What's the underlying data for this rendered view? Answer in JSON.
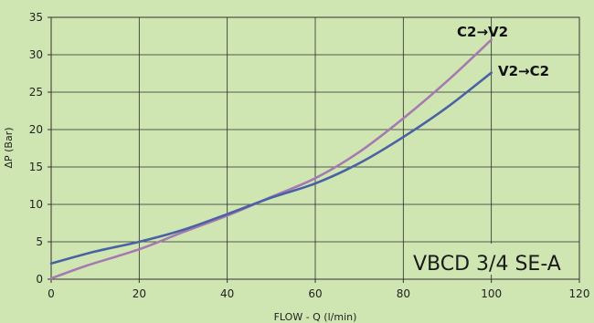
{
  "chart_data": {
    "type": "line",
    "xlabel": "FLOW - Q (l/min)",
    "ylabel": "ΔP (Bar)",
    "xlim": [
      0,
      120
    ],
    "ylim": [
      0,
      35
    ],
    "xticks": [
      "0",
      "20",
      "40",
      "60",
      "80",
      "100",
      "120"
    ],
    "yticks": [
      "0",
      "5",
      "10",
      "15",
      "20",
      "25",
      "30",
      "35"
    ],
    "grid": true,
    "background_color": "#cfe6b3",
    "series": [
      {
        "name": "C2→V2",
        "color": "#a57ab0",
        "x": [
          0,
          8,
          20,
          30,
          40,
          50,
          60,
          70,
          80,
          90,
          100
        ],
        "y": [
          0.1,
          1.8,
          4.0,
          6.3,
          8.5,
          11.0,
          13.5,
          17.0,
          21.5,
          26.5,
          32.0
        ]
      },
      {
        "name": "V2→C2",
        "color": "#4a62a4",
        "x": [
          0,
          10,
          20,
          30,
          40,
          50,
          60,
          70,
          80,
          90,
          100
        ],
        "y": [
          2.1,
          3.7,
          5.0,
          6.6,
          8.7,
          10.9,
          12.8,
          15.5,
          19.0,
          23.0,
          27.6
        ]
      }
    ],
    "annotation": "VBCD 3/4 SE-A"
  }
}
